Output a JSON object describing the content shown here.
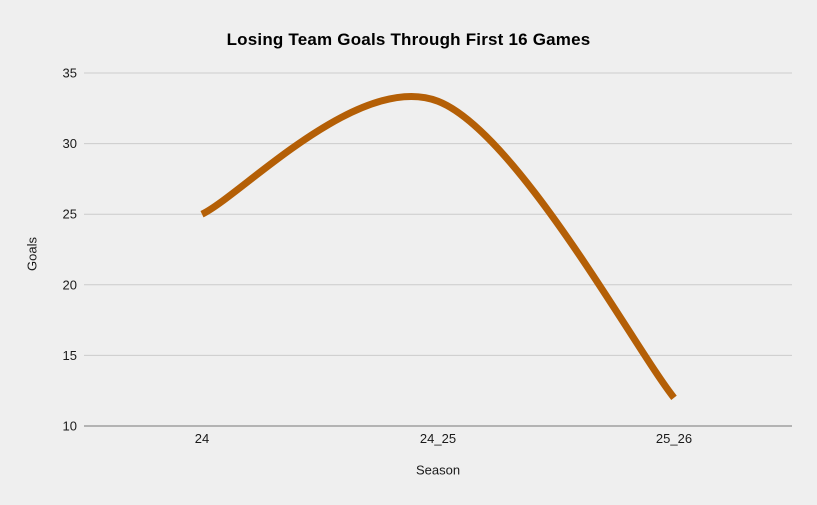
{
  "title": "Losing Team Goals Through First 16 Games",
  "colors": {
    "background": "#efefef",
    "line": "#b45f06",
    "gridline": "#cccccc",
    "axis_line": "#b3b3b3",
    "title_text": "#000000",
    "tick_text": "#1a1a1a",
    "axis_title_text": "#1a1a1a"
  },
  "chart_data": {
    "type": "line",
    "curve": "smooth",
    "title": "Losing Team Goals Through First 16 Games",
    "categories": [
      "24",
      "24_25",
      "25_26"
    ],
    "series": [
      {
        "name": "Goals",
        "values": [
          25,
          33,
          12
        ]
      }
    ],
    "xlabel": "Season",
    "ylabel": "Goals",
    "ylim": [
      10,
      35
    ],
    "yticks": [
      10,
      15,
      20,
      25,
      30,
      35
    ],
    "grid": true,
    "legend": "none"
  }
}
